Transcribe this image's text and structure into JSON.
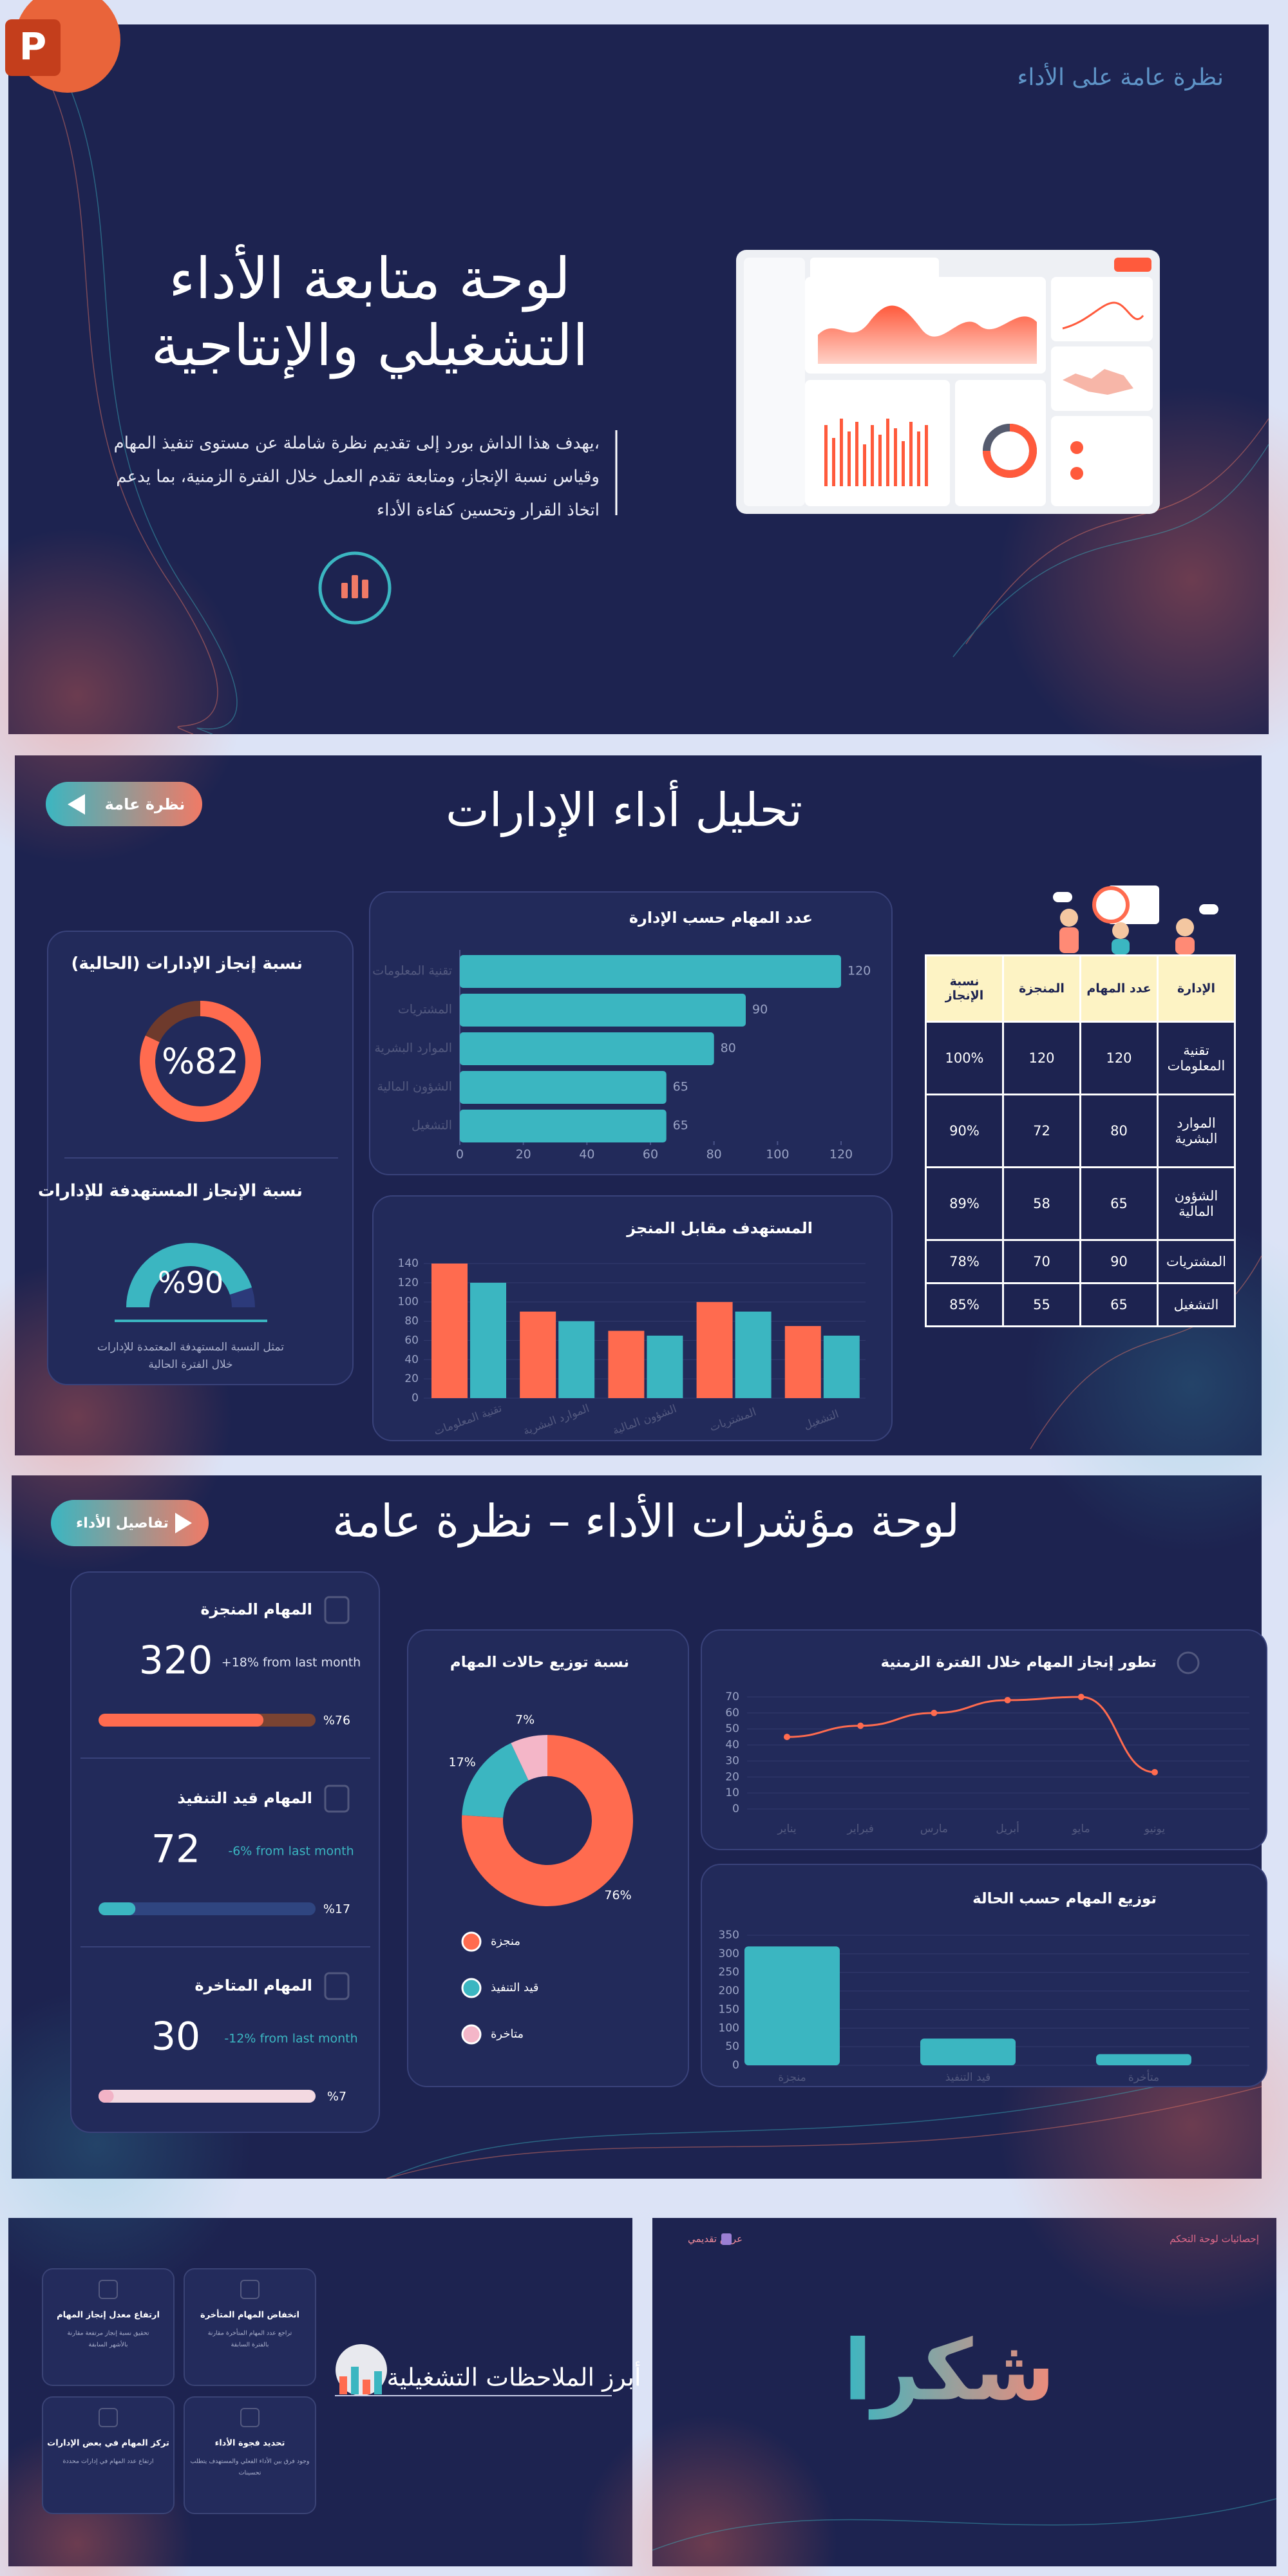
{
  "app_icon": "P",
  "slides": [
    {
      "label": "نظرة عامة على الأداء",
      "title_lines": [
        "لوحة متابعة الأداء",
        "التشغيلي والإنتاجية"
      ],
      "description_lines": [
        "يهدف هذا الداش بورد إلى تقديم نظرة شاملة عن مستوى تنفيذ المهام،",
        "وقياس نسبة الإنجاز، ومتابعة تقدم العمل خلال الفترة الزمنية، بما يدعم",
        "اتخاذ القرار وتحسين كفاءة الأداء"
      ]
    },
    {
      "button": "نظرة عامة",
      "title": "تحليل أداء الإدارات",
      "completion_card": {
        "type": "donut",
        "title": "نسبة إنجاز الإدارات (الحالية)",
        "value": 82,
        "value_label": "%82",
        "color": "#ff6b4f",
        "track_color": "#6e3a2c"
      },
      "target_card": {
        "type": "gauge",
        "title": "نسبة الإنجاز المستهدفة للإدارات",
        "value": 90,
        "value_label": "%90",
        "color": "#3bb6c1",
        "track_color": "#2c3a7a",
        "note_lines": [
          "تمثل النسبة المستهدفة المعتمدة للإدارات",
          "خلال الفترة الحالية"
        ]
      },
      "bar_chart": {
        "type": "bar",
        "orientation": "horizontal",
        "title": "عدد المهام حسب الإدارة",
        "categories": [
          "تقنية المعلومات",
          "المشتريات",
          "الموارد البشرية",
          "الشؤون المالية",
          "التشغيل"
        ],
        "values": [
          120,
          90,
          80,
          65,
          65
        ],
        "color": "#3bb6c1",
        "xlim": [
          0,
          120
        ],
        "xticks": [
          0,
          20,
          40,
          60,
          80,
          100,
          120
        ]
      },
      "grouped_chart": {
        "type": "bar",
        "title": "المستهدف مقابل المنجز",
        "categories": [
          "تقنية المعلومات",
          "الموارد البشرية",
          "الشؤون المالية",
          "المشتريات",
          "التشغيل"
        ],
        "series": [
          {
            "color": "#ff6b4f",
            "values": [
              140,
              90,
              70,
              100,
              75
            ]
          },
          {
            "color": "#3bb6c1",
            "values": [
              120,
              80,
              65,
              90,
              65
            ]
          }
        ],
        "ylim": [
          0,
          140
        ],
        "yticks": [
          0,
          20,
          40,
          60,
          80,
          100,
          120,
          140
        ],
        "grid": true
      },
      "table": {
        "header": [
          "الإدارة",
          "عدد المهام",
          "المنجزة",
          "نسبة الإنجاز"
        ],
        "rows": [
          [
            "تقنية المعلومات",
            120,
            120,
            "100%"
          ],
          [
            "الموارد البشرية",
            80,
            72,
            "90%"
          ],
          [
            "الشؤون المالية",
            65,
            58,
            "89%"
          ],
          [
            "المشتريات",
            90,
            70,
            "78%"
          ],
          [
            "التشغيل",
            65,
            55,
            "85%"
          ]
        ]
      }
    },
    {
      "button": "تفاصيل الأداء",
      "title": "لوحة مؤشرات الأداء – نظرة عامة",
      "kpis": [
        {
          "title": "المهام المنجزة",
          "value": 320,
          "change": "+18% from last month",
          "progress": 76,
          "progress_label": "%76",
          "color": "#ff6b4f",
          "track_color": "#7a4332"
        },
        {
          "title": "المهام قيد التنفيذ",
          "value": 72,
          "change": "-6% from last month",
          "progress": 17,
          "progress_label": "%17",
          "color": "#3bb6c1",
          "track_color": "#2f4580"
        },
        {
          "title": "المهام المتاخرة",
          "value": 30,
          "change": "-12% from last month",
          "progress": 7,
          "progress_label": "%7",
          "color": "#f2b3c6",
          "track_color": "#f3d9e1"
        }
      ],
      "status_donut": {
        "type": "donut",
        "title": "نسبة توزيع حالات المهام",
        "categories": [
          "منجزة",
          "قيد التنفيذ",
          "متاخرة"
        ],
        "values": [
          76,
          17,
          7
        ],
        "value_labels": [
          "76%",
          "17%",
          "7%"
        ],
        "colors": [
          "#ff6b4f",
          "#3bb6c1",
          "#f4b6c8"
        ]
      },
      "line_chart": {
        "type": "line",
        "title": "تطور إنجاز المهام خلال الفترة الزمنية",
        "categories": [
          "يناير",
          "فبراير",
          "مارس",
          "أبريل",
          "مايو",
          "يونيو"
        ],
        "values": [
          45,
          52,
          60,
          68,
          70,
          23
        ],
        "color": "#ff6b4f",
        "ylim": [
          0,
          70
        ],
        "yticks": [
          0,
          10,
          20,
          30,
          40,
          50,
          60,
          70
        ],
        "grid": true
      },
      "status_bar": {
        "type": "bar",
        "title": "توزيع المهام حسب الحالة",
        "categories": [
          "منجزة",
          "قيد التنفيذ",
          "متأخرة"
        ],
        "values": [
          320,
          72,
          30
        ],
        "color": "#3bb6c1",
        "ylim": [
          0,
          350
        ],
        "yticks": [
          0,
          50,
          100,
          150,
          200,
          250,
          300,
          350
        ],
        "grid": true
      }
    },
    {
      "title": "أبرز الملاحظات التشغيلية",
      "cards": [
        {
          "title": "ارتفاع معدل إنجاز المهام",
          "text_lines": [
            "تحقيق نسبة إنجاز مرتفعة مقارنة",
            "بالأشهر السابقة"
          ]
        },
        {
          "title": "انخفاض المهام المتأخرة",
          "text_lines": [
            "تراجع عدد المهام المتأخرة مقارنة",
            "بالفترة السابقة"
          ]
        },
        {
          "title": "تركز المهام في بعض الإدارات",
          "text_lines": [
            "ارتفاع عدد المهام في إدارات محددة"
          ]
        },
        {
          "title": "تحديد فجوة الأداء",
          "text_lines": [
            "وجود فرق بين الأداء الفعلي والمستهدف يتطلب",
            "تحسينات"
          ]
        }
      ]
    },
    {
      "heading": "شكرا",
      "left_label": "عرض تقديمي",
      "right_label": "إحصائيات لوحة التحكم"
    }
  ]
}
